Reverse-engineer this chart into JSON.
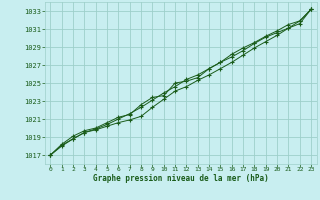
{
  "xlabel": "Graphe pression niveau de la mer (hPa)",
  "xlim": [
    -0.5,
    23.5
  ],
  "ylim": [
    1016.0,
    1034.0
  ],
  "yticks": [
    1017,
    1019,
    1021,
    1023,
    1025,
    1027,
    1029,
    1031,
    1033
  ],
  "xticks": [
    0,
    1,
    2,
    3,
    4,
    5,
    6,
    7,
    8,
    9,
    10,
    11,
    12,
    13,
    14,
    15,
    16,
    17,
    18,
    19,
    20,
    21,
    22,
    23
  ],
  "background_color": "#c8eef0",
  "grid_color": "#9ecfca",
  "line_color": "#1a5c1a",
  "series1": [
    1017.0,
    1018.1,
    1018.8,
    1019.5,
    1019.8,
    1020.2,
    1020.6,
    1020.9,
    1021.3,
    1022.3,
    1023.2,
    1024.1,
    1024.6,
    1025.3,
    1025.9,
    1026.6,
    1027.3,
    1028.1,
    1028.9,
    1029.6,
    1030.3,
    1031.1,
    1031.9,
    1033.2
  ],
  "series2": [
    1017.0,
    1018.0,
    1018.8,
    1019.5,
    1019.9,
    1020.4,
    1021.0,
    1021.6,
    1022.3,
    1023.1,
    1023.9,
    1024.6,
    1025.4,
    1025.9,
    1026.6,
    1027.3,
    1028.2,
    1028.9,
    1029.5,
    1030.2,
    1030.8,
    1031.5,
    1031.9,
    1033.2
  ],
  "series3": [
    1017.0,
    1018.2,
    1019.1,
    1019.7,
    1020.0,
    1020.6,
    1021.2,
    1021.5,
    1022.6,
    1023.4,
    1023.6,
    1025.0,
    1025.2,
    1025.6,
    1026.6,
    1027.3,
    1027.9,
    1028.6,
    1029.4,
    1030.1,
    1030.6,
    1031.1,
    1031.6,
    1033.2
  ]
}
